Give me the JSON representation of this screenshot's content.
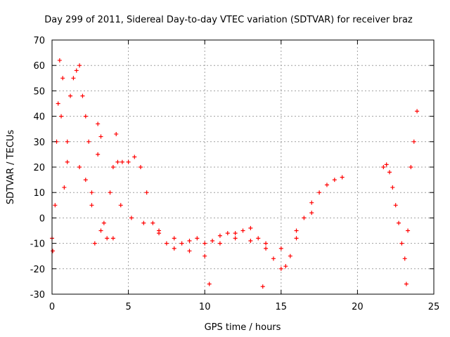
{
  "chart_data": {
    "type": "scatter",
    "title": "Day 299 of 2011, Sidereal Day-to-day VTEC variation (SDTVAR) for receiver braz",
    "xlabel": "GPS time / hours",
    "ylabel": "SDTVAR / TECUs",
    "xlim": [
      0,
      25
    ],
    "ylim": [
      -30,
      70
    ],
    "x_ticks": [
      0,
      5,
      10,
      15,
      20,
      25
    ],
    "x_tick_labels": [
      "0",
      "5",
      "10",
      "15",
      "20",
      "25"
    ],
    "y_ticks": [
      -30,
      -20,
      -10,
      0,
      10,
      20,
      30,
      40,
      50,
      60,
      70
    ],
    "y_tick_labels": [
      "-30",
      "-20",
      "-10",
      "0",
      "10",
      "20",
      "30",
      "40",
      "50",
      "60",
      "70"
    ],
    "grid": true,
    "marker": "+",
    "series_color": "#ff0000",
    "series": [
      {
        "name": "SDTVAR",
        "x": [
          0.0,
          0.2,
          0.4,
          0.6,
          0.8,
          1.0,
          1.2,
          1.4,
          1.6,
          1.8,
          2.0,
          2.2,
          2.4,
          2.6,
          2.8,
          3.0,
          3.2,
          3.4,
          3.6,
          3.8,
          4.0,
          4.3,
          4.6,
          5.0,
          5.4,
          5.8,
          6.2,
          6.6,
          7.0,
          7.5,
          8.0,
          8.5,
          9.0,
          9.5,
          10.0,
          10.5,
          11.0,
          11.5,
          12.0,
          12.5,
          13.0,
          13.5,
          14.0,
          14.5,
          15.0,
          15.3,
          15.6,
          16.0,
          16.5,
          17.0,
          17.5,
          18.0,
          18.5,
          19.0,
          21.7,
          21.9,
          22.1,
          22.3,
          22.5,
          22.7,
          22.9,
          23.1,
          23.3,
          23.5,
          23.7,
          23.9,
          1.8,
          2.2,
          2.6,
          3.2,
          4.0,
          4.5,
          5.2,
          6.0,
          7.0,
          8.0,
          9.0,
          10.0,
          11.0,
          12.0,
          13.0,
          14.0,
          15.0,
          16.0,
          17.0,
          0.5,
          0.7,
          3.0,
          4.2,
          10.3,
          13.8,
          23.2,
          0.05,
          0.3,
          1.0
        ],
        "y": [
          -8,
          5,
          45,
          40,
          12,
          30,
          48,
          55,
          58,
          60,
          48,
          40,
          30,
          5,
          -10,
          25,
          32,
          -2,
          -8,
          10,
          20,
          22,
          22,
          22,
          24,
          20,
          10,
          -2,
          -6,
          -10,
          -8,
          -10,
          -9,
          -8,
          -10,
          -9,
          -7,
          -6,
          -6,
          -5,
          -4,
          -8,
          -12,
          -16,
          -20,
          -19,
          -15,
          -8,
          0,
          6,
          10,
          13,
          15,
          16,
          20,
          21,
          18,
          12,
          5,
          -2,
          -10,
          -16,
          -5,
          20,
          30,
          42,
          20,
          15,
          10,
          -5,
          -8,
          5,
          0,
          -2,
          -5,
          -12,
          -13,
          -15,
          -10,
          -8,
          -9,
          -10,
          -12,
          -5,
          2,
          62,
          55,
          37,
          33,
          -26,
          -27,
          -26,
          -13,
          30,
          22
        ]
      }
    ]
  }
}
